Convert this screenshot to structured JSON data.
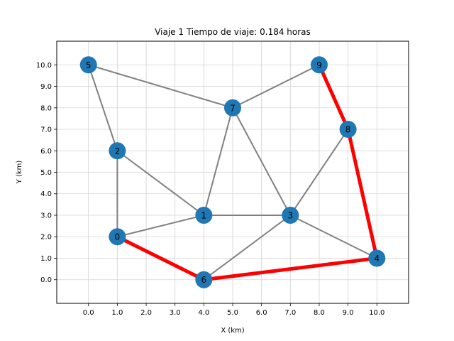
{
  "chart_data": {
    "type": "network",
    "title": "Viaje 1 Tiempo de viaje: 0.184 horas",
    "xlabel": "X (km)",
    "ylabel": "Y (km)",
    "xlim": [
      -1.1,
      11.1
    ],
    "ylim": [
      -1.1,
      11.1
    ],
    "x_ticks": [
      "0.0",
      "1.0",
      "2.0",
      "3.0",
      "4.0",
      "5.0",
      "6.0",
      "7.0",
      "8.0",
      "9.0",
      "10.0"
    ],
    "y_ticks": [
      "0.0",
      "1.0",
      "2.0",
      "3.0",
      "4.0",
      "5.0",
      "6.0",
      "7.0",
      "8.0",
      "9.0",
      "10.0"
    ],
    "grid": true,
    "nodes": [
      {
        "id": "0",
        "x": 1,
        "y": 2
      },
      {
        "id": "1",
        "x": 4,
        "y": 3
      },
      {
        "id": "2",
        "x": 1,
        "y": 6
      },
      {
        "id": "3",
        "x": 7,
        "y": 3
      },
      {
        "id": "4",
        "x": 10,
        "y": 1
      },
      {
        "id": "5",
        "x": 0,
        "y": 10
      },
      {
        "id": "6",
        "x": 4,
        "y": 0
      },
      {
        "id": "7",
        "x": 5,
        "y": 8
      },
      {
        "id": "8",
        "x": 9,
        "y": 7
      },
      {
        "id": "9",
        "x": 8,
        "y": 10
      }
    ],
    "edges": [
      [
        "5",
        "7"
      ],
      [
        "5",
        "2"
      ],
      [
        "2",
        "1"
      ],
      [
        "2",
        "0"
      ],
      [
        "0",
        "1"
      ],
      [
        "1",
        "3"
      ],
      [
        "1",
        "7"
      ],
      [
        "7",
        "3"
      ],
      [
        "7",
        "9"
      ],
      [
        "3",
        "8"
      ],
      [
        "3",
        "4"
      ],
      [
        "3",
        "6"
      ]
    ],
    "route_edges": [
      [
        "9",
        "8"
      ],
      [
        "8",
        "4"
      ],
      [
        "4",
        "6"
      ],
      [
        "6",
        "0"
      ]
    ],
    "colors": {
      "node": "#1f77b4",
      "edge": "#808080",
      "route": "#ff0000",
      "grid": "#d3d3d3",
      "axis": "#000000"
    }
  }
}
